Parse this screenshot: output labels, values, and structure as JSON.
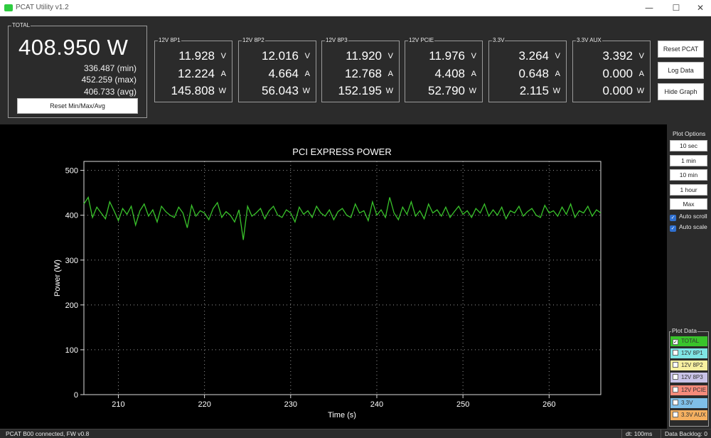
{
  "window": {
    "title": "PCAT Utility v1.2",
    "buttons": {
      "minimize": "—",
      "maximize": "☐",
      "close": "✕"
    }
  },
  "total": {
    "label": "TOTAL",
    "watts": "408.950 W",
    "min": "336.487 (min)",
    "max": "452.259 (max)",
    "avg": "406.733 (avg)",
    "reset_label": "Reset Min/Max/Avg"
  },
  "rails": [
    {
      "label": "12V 8P1",
      "volts": "11.928",
      "amps": "12.224",
      "watts": "145.808"
    },
    {
      "label": "12V 8P2",
      "volts": "12.016",
      "amps": "4.664",
      "watts": "56.043"
    },
    {
      "label": "12V 8P3",
      "volts": "11.920",
      "amps": "12.768",
      "watts": "152.195"
    },
    {
      "label": "12V PCIE",
      "volts": "11.976",
      "amps": "4.408",
      "watts": "52.790"
    },
    {
      "label": "3.3V",
      "volts": "3.264",
      "amps": "0.648",
      "watts": "2.115"
    },
    {
      "label": "3.3V AUX",
      "volts": "3.392",
      "amps": "0.000",
      "watts": "0.000"
    }
  ],
  "units": {
    "v": "V",
    "a": "A",
    "w": "W"
  },
  "actions": {
    "reset_pcat": "Reset PCAT",
    "log_data": "Log Data",
    "hide_graph": "Hide Graph"
  },
  "plot_options": {
    "title": "Plot Options",
    "ranges": [
      "10 sec",
      "1 min",
      "10 min",
      "1 hour",
      "Max"
    ],
    "auto_scroll": "Auto scroll",
    "auto_scale": "Auto scale"
  },
  "plot_data": {
    "title": "Plot Data",
    "items": [
      {
        "label": "TOTAL",
        "color": "#39c42b",
        "checked": true
      },
      {
        "label": "12V 8P1",
        "color": "#7fe5e5",
        "checked": false
      },
      {
        "label": "12V 8P2",
        "color": "#f7f0a0",
        "checked": false
      },
      {
        "label": "12V 8P3",
        "color": "#c9c3e8",
        "checked": false
      },
      {
        "label": "12V PCIE",
        "color": "#f58a7a",
        "checked": false
      },
      {
        "label": "3.3V",
        "color": "#7fbfe8",
        "checked": false
      },
      {
        "label": "3.3V AUX",
        "color": "#f5b060",
        "checked": false
      }
    ]
  },
  "status": {
    "text": "PCAT B00 connected, FW v0.8",
    "dt": "dt: 100ms",
    "backlog": "Data Backlog: 0"
  },
  "chart_data": {
    "type": "line",
    "title": "PCI EXPRESS POWER",
    "xlabel": "Time (s)",
    "ylabel": "Power (W)",
    "xlim": [
      206,
      266
    ],
    "ylim": [
      0,
      520
    ],
    "xticks": [
      210,
      220,
      230,
      240,
      250,
      260
    ],
    "yticks": [
      0,
      100,
      200,
      300,
      400,
      500
    ],
    "grid": true,
    "series": [
      {
        "color": "#39c42b",
        "x": [
          206,
          206.5,
          207,
          207.5,
          208,
          208.5,
          209,
          209.5,
          210,
          210.5,
          211,
          211.5,
          212,
          212.5,
          213,
          213.5,
          214,
          214.5,
          215,
          215.5,
          216,
          216.5,
          217,
          217.5,
          218,
          218.5,
          219,
          219.5,
          220,
          220.5,
          221,
          221.5,
          222,
          222.5,
          223,
          223.5,
          224,
          224.5,
          225,
          225.5,
          226,
          226.5,
          227,
          227.5,
          228,
          228.5,
          229,
          229.5,
          230,
          230.5,
          231,
          231.5,
          232,
          232.5,
          233,
          233.5,
          234,
          234.5,
          235,
          235.5,
          236,
          236.5,
          237,
          237.5,
          238,
          238.5,
          239,
          239.5,
          240,
          240.5,
          241,
          241.5,
          242,
          242.5,
          243,
          243.5,
          244,
          244.5,
          245,
          245.5,
          246,
          246.5,
          247,
          247.5,
          248,
          248.5,
          249,
          249.5,
          250,
          250.5,
          251,
          251.5,
          252,
          252.5,
          253,
          253.5,
          254,
          254.5,
          255,
          255.5,
          256,
          256.5,
          257,
          257.5,
          258,
          258.5,
          259,
          259.5,
          260,
          260.5,
          261,
          261.5,
          262,
          262.5,
          263,
          263.5,
          264,
          264.5,
          265,
          265.5,
          266
        ],
        "y": [
          425,
          440,
          395,
          418,
          405,
          392,
          430,
          410,
          388,
          415,
          402,
          420,
          378,
          410,
          425,
          398,
          412,
          385,
          420,
          408,
          400,
          395,
          418,
          405,
          372,
          422,
          398,
          410,
          405,
          390,
          415,
          428,
          395,
          408,
          400,
          385,
          412,
          345,
          420,
          398,
          405,
          415,
          392,
          410,
          420,
          400,
          395,
          412,
          405,
          385,
          418,
          402,
          410,
          395,
          420,
          405,
          398,
          412,
          390,
          408,
          415,
          400,
          395,
          425,
          405,
          410,
          388,
          430,
          400,
          412,
          395,
          440,
          405,
          390,
          418,
          402,
          430,
          398,
          410,
          392,
          425,
          405,
          412,
          398,
          418,
          395,
          408,
          420,
          402,
          410,
          395,
          415,
          405,
          425,
          398,
          412,
          400,
          418,
          392,
          410,
          405,
          420,
          398,
          408,
          415,
          400,
          395,
          422,
          405,
          410,
          398,
          418,
          402,
          425,
          395,
          410,
          405,
          420,
          398,
          412,
          405
        ]
      }
    ]
  }
}
